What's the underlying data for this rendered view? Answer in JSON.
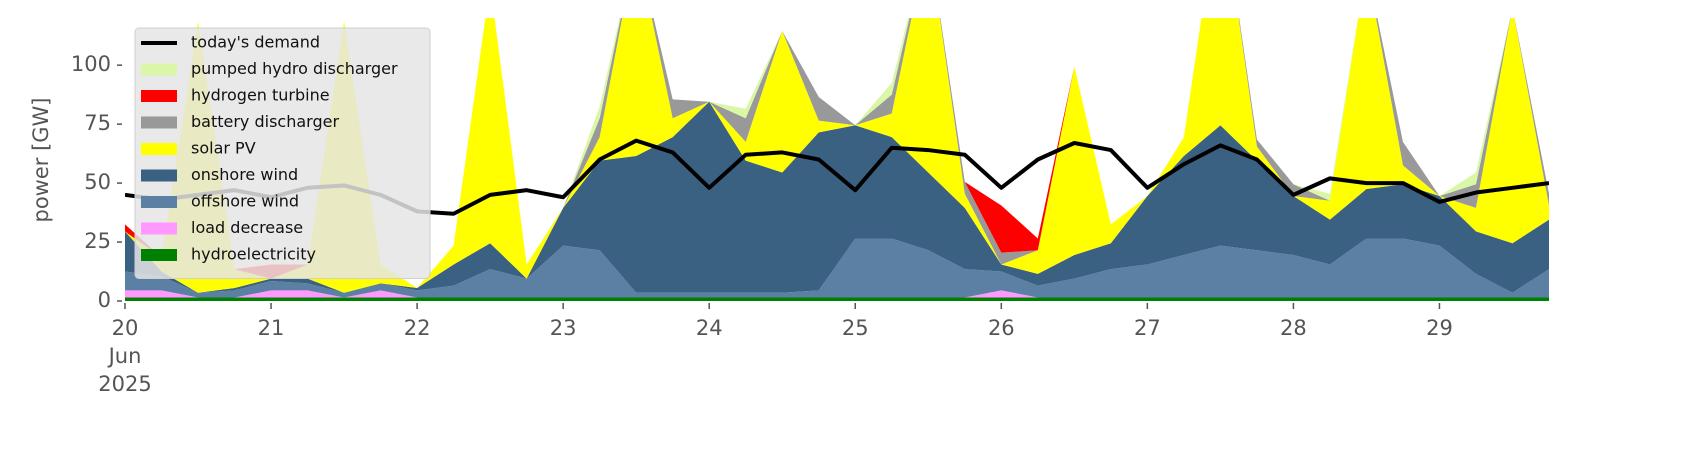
{
  "chart_data": {
    "type": "area",
    "ylabel": "power [GW]",
    "x": [
      20,
      20.25,
      20.5,
      20.75,
      21,
      21.25,
      21.5,
      21.75,
      22,
      22.25,
      22.5,
      22.75,
      23,
      23.25,
      23.5,
      23.75,
      24,
      24.25,
      24.5,
      24.75,
      25,
      25.25,
      25.5,
      25.75,
      26,
      26.25,
      26.5,
      26.75,
      27,
      27.25,
      27.5,
      27.75,
      28,
      28.25,
      28.5,
      28.75,
      29,
      29.25,
      29.5,
      29.75
    ],
    "xlim": [
      20,
      29.75
    ],
    "xticks": [
      {
        "value": 20,
        "label": "20\nJun\n2025"
      },
      21,
      22,
      23,
      24,
      25,
      26,
      27,
      28,
      29
    ],
    "ylim": [
      0,
      120
    ],
    "yticks": [
      0,
      25,
      50,
      75,
      100
    ],
    "series": [
      {
        "name": "today's demand",
        "type": "line",
        "color": "#000000",
        "values": [
          45,
          43,
          45,
          47,
          44,
          48,
          49,
          45,
          38,
          37,
          45,
          47,
          44,
          60,
          68,
          63,
          48,
          62,
          63,
          60,
          47,
          65,
          64,
          62,
          48,
          60,
          67,
          64,
          48,
          58,
          66,
          60,
          45,
          52,
          50,
          50,
          42,
          46,
          48,
          50
        ]
      },
      {
        "name": "pumped hydro discharger",
        "color": "#d9f7a6",
        "values": [
          0,
          0,
          0,
          0,
          0,
          0,
          0,
          0,
          0,
          0,
          0,
          0,
          0,
          5,
          0,
          0,
          0,
          4,
          0,
          0,
          0,
          5,
          0,
          0,
          0,
          0,
          0,
          0,
          0,
          0,
          0,
          0,
          0,
          3,
          0,
          0,
          0,
          5,
          0,
          0
        ]
      },
      {
        "name": "hydrogen turbine",
        "color": "#ff0000",
        "values": [
          3,
          0,
          0,
          0,
          6,
          0,
          0,
          0,
          0,
          0,
          0,
          0,
          0,
          0,
          0,
          0,
          0,
          0,
          0,
          0,
          0,
          0,
          0,
          0,
          20,
          5,
          0,
          0,
          0,
          0,
          0,
          0,
          0,
          0,
          0,
          0,
          0,
          0,
          0,
          0
        ]
      },
      {
        "name": "battery discharger",
        "color": "#999999",
        "values": [
          0,
          0,
          0,
          0,
          0,
          0,
          0,
          0,
          0,
          0,
          0,
          0,
          0,
          8,
          0,
          8,
          0,
          10,
          0,
          10,
          0,
          8,
          0,
          5,
          5,
          0,
          0,
          0,
          0,
          0,
          0,
          3,
          5,
          0,
          0,
          10,
          0,
          10,
          0,
          5
        ]
      },
      {
        "name": "solar PV",
        "color": "#ffff00",
        "values": [
          0,
          6,
          115,
          8,
          0,
          6,
          115,
          8,
          0,
          8,
          110,
          6,
          0,
          10,
          90,
          8,
          0,
          8,
          60,
          5,
          0,
          10,
          100,
          6,
          0,
          10,
          80,
          8,
          0,
          8,
          100,
          6,
          0,
          8,
          95,
          8,
          0,
          10,
          100,
          6
        ]
      },
      {
        "name": "onshore wind",
        "color": "#3b6182",
        "values": [
          17,
          2,
          0,
          1,
          1,
          2,
          0,
          0,
          1,
          9,
          11,
          0,
          16,
          38,
          58,
          66,
          81,
          56,
          51,
          67,
          48,
          43,
          33,
          26,
          3,
          5,
          10,
          11,
          29,
          42,
          51,
          38,
          25,
          19,
          21,
          23,
          21,
          18,
          21,
          21
        ]
      },
      {
        "name": "offshore wind",
        "color": "#5b80a4",
        "values": [
          8,
          6,
          2,
          3,
          4,
          3,
          2,
          3,
          3,
          5,
          12,
          8,
          22,
          20,
          2,
          2,
          2,
          2,
          2,
          3,
          25,
          25,
          20,
          12,
          8,
          5,
          8,
          12,
          14,
          18,
          22,
          20,
          18,
          14,
          25,
          25,
          22,
          10,
          2,
          12
        ]
      },
      {
        "name": "load decrease",
        "color": "#ff99ff",
        "values": [
          3,
          3,
          0,
          0,
          3,
          3,
          0,
          3,
          0,
          0,
          0,
          0,
          0,
          0,
          0,
          0,
          0,
          0,
          0,
          0,
          0,
          0,
          0,
          0,
          3,
          0,
          0,
          0,
          0,
          0,
          0,
          0,
          0,
          0,
          0,
          0,
          0,
          0,
          0,
          0
        ]
      },
      {
        "name": "hydroelectricity",
        "color": "#008000",
        "values": [
          1.5,
          1.5,
          1.5,
          1.5,
          1.5,
          1.5,
          1.5,
          1.5,
          1.5,
          1.5,
          1.5,
          1.5,
          1.5,
          1.5,
          1.5,
          1.5,
          1.5,
          1.5,
          1.5,
          1.5,
          1.5,
          1.5,
          1.5,
          1.5,
          1.5,
          1.5,
          1.5,
          1.5,
          1.5,
          1.5,
          1.5,
          1.5,
          1.5,
          1.5,
          1.5,
          1.5,
          1.5,
          1.5,
          1.5,
          1.5
        ]
      }
    ]
  }
}
